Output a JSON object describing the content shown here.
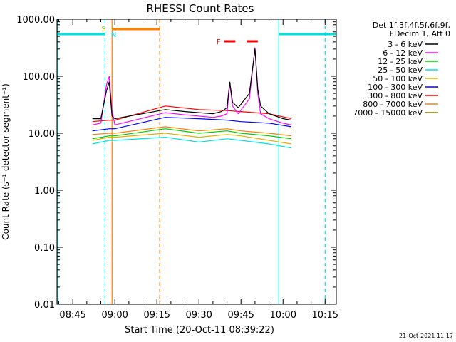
{
  "chart_data": {
    "type": "line",
    "title": "RHESSI Count Rates",
    "xlabel": "Start Time (20-Oct-11 08:39:22)",
    "ylabel": "Count Rate (s⁻¹ detector segment⁻¹)",
    "yscale": "log",
    "ylim": [
      0.01,
      1000
    ],
    "xlim": [
      "08:39:22",
      "10:19:00"
    ],
    "x_ticks": [
      "08:45",
      "09:00",
      "09:15",
      "09:30",
      "09:45",
      "10:00",
      "10:15"
    ],
    "y_ticks": [
      "0.01",
      "0.10",
      "1.00",
      "10.00",
      "100.00",
      "1000.00"
    ],
    "legend_header": [
      "Det 1f,3f,4f,5f,6f,9f,",
      "FDecim 1, Att 0"
    ],
    "series": [
      {
        "name": "3 - 6 keV",
        "color": "#000000",
        "x": [
          "08:52",
          "08:55",
          "08:57",
          "08:58",
          "08:59",
          "09:00",
          "09:18",
          "09:25",
          "09:35",
          "09:38",
          "09:40",
          "09:41",
          "09:42",
          "09:44",
          "09:48",
          "09:50",
          "09:51",
          "09:52",
          "09:55",
          "10:00",
          "10:03"
        ],
        "y": [
          18,
          18,
          55,
          80,
          20,
          18,
          26,
          24,
          22,
          24,
          28,
          80,
          35,
          28,
          50,
          300,
          60,
          30,
          22,
          18,
          17
        ]
      },
      {
        "name": "6 - 12 keV",
        "color": "#ff00ff",
        "x": [
          "08:52",
          "08:55",
          "08:57",
          "08:58",
          "08:59",
          "09:00",
          "09:18",
          "09:25",
          "09:35",
          "09:38",
          "09:40",
          "09:41",
          "09:42",
          "09:44",
          "09:48",
          "09:50",
          "09:51",
          "09:52",
          "09:55",
          "10:00",
          "10:03"
        ],
        "y": [
          14,
          15,
          70,
          100,
          25,
          14,
          23,
          21,
          19,
          20,
          22,
          75,
          30,
          22,
          40,
          320,
          50,
          22,
          18,
          15,
          14
        ]
      },
      {
        "name": "12 - 25 keV",
        "color": "#00cc00",
        "x": [
          "08:52",
          "08:58",
          "09:00",
          "09:18",
          "09:30",
          "09:40",
          "09:45",
          "09:55",
          "10:03"
        ],
        "y": [
          8,
          9,
          9,
          12,
          10,
          11,
          10,
          9,
          8
        ]
      },
      {
        "name": "25 - 50 keV",
        "color": "#00e0e0",
        "x": [
          "08:52",
          "08:58",
          "09:00",
          "09:18",
          "09:30",
          "09:40",
          "09:45",
          "09:55",
          "10:03"
        ],
        "y": [
          6.5,
          7.5,
          7.5,
          8.5,
          7,
          8,
          7.5,
          6.5,
          5.5
        ]
      },
      {
        "name": "50 - 100 keV",
        "color": "#e0b000",
        "x": [
          "08:52",
          "08:58",
          "09:00",
          "09:18",
          "09:30",
          "09:40",
          "09:45",
          "09:55",
          "10:03"
        ],
        "y": [
          7.5,
          8.5,
          8.5,
          10,
          8.5,
          9.5,
          9,
          7.5,
          6.5
        ]
      },
      {
        "name": "100 - 300 keV",
        "color": "#0000ff",
        "x": [
          "08:52",
          "08:58",
          "09:00",
          "09:18",
          "09:30",
          "09:40",
          "09:45",
          "09:55",
          "10:03"
        ],
        "y": [
          11,
          12,
          12,
          19,
          18,
          17,
          16,
          15,
          13
        ]
      },
      {
        "name": "300 - 800 keV",
        "color": "#ff0000",
        "x": [
          "08:52",
          "08:58",
          "09:00",
          "09:18",
          "09:30",
          "09:40",
          "09:45",
          "09:55",
          "10:03"
        ],
        "y": [
          16,
          17,
          17,
          30,
          26,
          25,
          24,
          22,
          18
        ]
      },
      {
        "name": "800 - 7000 keV",
        "color": "#ff8000",
        "x": [
          "08:52",
          "08:58",
          "09:00",
          "09:18",
          "09:30",
          "09:40",
          "09:45",
          "09:55",
          "10:03"
        ],
        "y": [
          9.5,
          10,
          10,
          13,
          11,
          12,
          11,
          10,
          9
        ]
      },
      {
        "name": "7000 - 15000 keV",
        "color": "#808000",
        "x": [],
        "y": []
      }
    ],
    "annotations": {
      "S": "S",
      "N": "N",
      "F": "F"
    }
  },
  "footer_date": "21-Oct-2021 11:17"
}
